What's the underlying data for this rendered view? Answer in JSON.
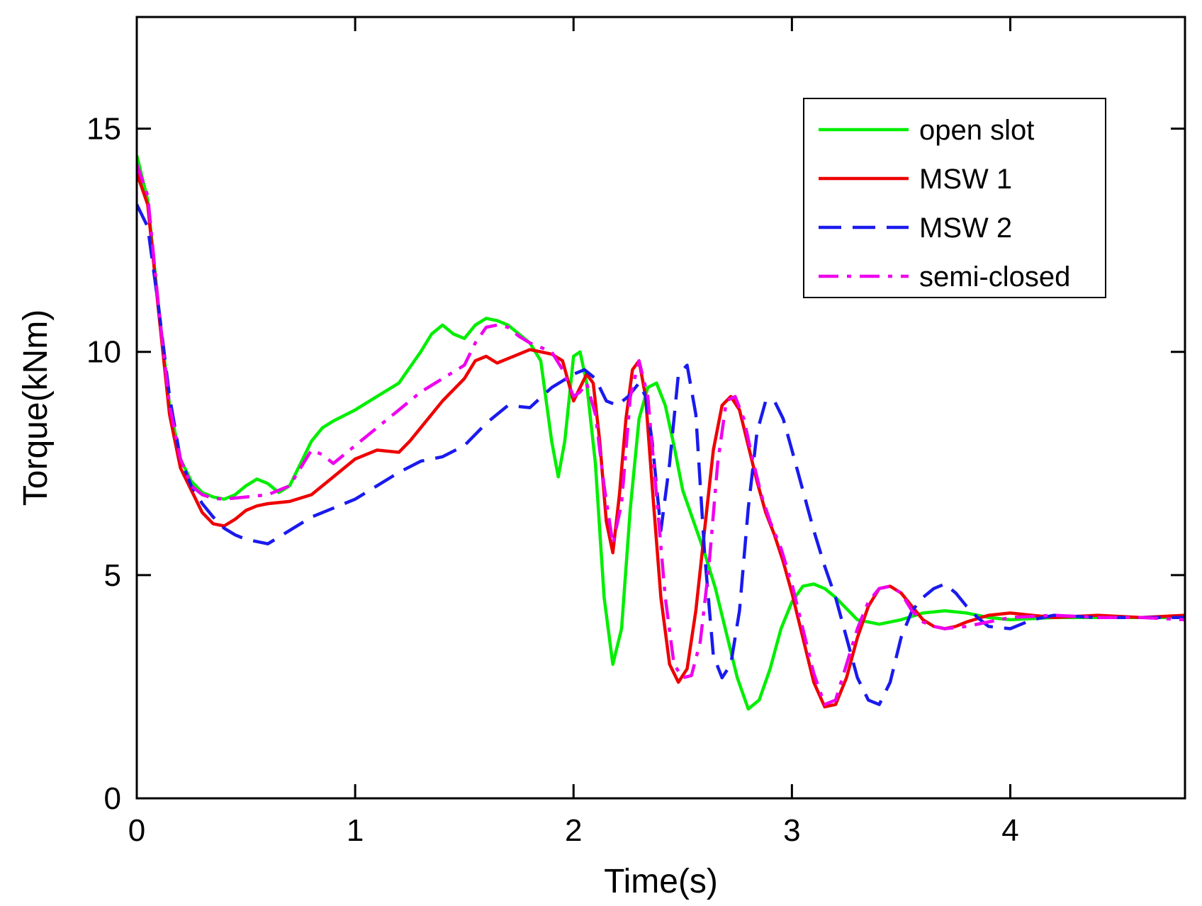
{
  "chart_data": {
    "type": "line",
    "title": "",
    "xlabel": "Time(s)",
    "ylabel": "Torque(kNm)",
    "xlim": [
      0,
      4.8
    ],
    "ylim": [
      0,
      17.5
    ],
    "xticks": [
      0,
      1,
      2,
      3,
      4
    ],
    "yticks": [
      0,
      5,
      10,
      15
    ],
    "xtick_labels": [
      "0",
      "1",
      "2",
      "3",
      "4"
    ],
    "ytick_labels": [
      "0",
      "5",
      "10",
      "15"
    ],
    "grid": false,
    "legend_position": "top-right",
    "series": [
      {
        "name": "open slot",
        "color": "#00ee00",
        "style": "solid",
        "x": [
          0,
          0.05,
          0.1,
          0.15,
          0.2,
          0.25,
          0.3,
          0.35,
          0.4,
          0.45,
          0.5,
          0.55,
          0.6,
          0.65,
          0.7,
          0.75,
          0.8,
          0.85,
          0.9,
          1.0,
          1.1,
          1.2,
          1.3,
          1.35,
          1.4,
          1.45,
          1.5,
          1.55,
          1.6,
          1.65,
          1.7,
          1.75,
          1.8,
          1.85,
          1.9,
          1.93,
          1.96,
          2.0,
          2.03,
          2.06,
          2.1,
          2.14,
          2.18,
          2.22,
          2.26,
          2.3,
          2.34,
          2.38,
          2.42,
          2.46,
          2.5,
          2.55,
          2.6,
          2.65,
          2.7,
          2.75,
          2.8,
          2.85,
          2.9,
          2.95,
          3.0,
          3.05,
          3.1,
          3.15,
          3.2,
          3.3,
          3.4,
          3.5,
          3.6,
          3.7,
          3.8,
          3.9,
          4.0,
          4.2,
          4.4,
          4.6,
          4.8
        ],
        "y": [
          14.4,
          13.4,
          11.0,
          8.8,
          7.6,
          7.1,
          6.85,
          6.75,
          6.7,
          6.8,
          7.0,
          7.15,
          7.05,
          6.85,
          7.0,
          7.5,
          8.0,
          8.3,
          8.45,
          8.7,
          9.0,
          9.3,
          10.0,
          10.4,
          10.6,
          10.4,
          10.3,
          10.6,
          10.75,
          10.7,
          10.6,
          10.4,
          10.2,
          9.8,
          8.0,
          7.2,
          8.0,
          9.9,
          10.0,
          9.3,
          7.5,
          4.5,
          3.0,
          3.8,
          6.5,
          8.5,
          9.2,
          9.3,
          8.8,
          7.9,
          6.9,
          6.2,
          5.5,
          4.7,
          3.7,
          2.7,
          2.0,
          2.2,
          2.9,
          3.8,
          4.4,
          4.75,
          4.8,
          4.7,
          4.5,
          4.0,
          3.9,
          4.0,
          4.15,
          4.2,
          4.15,
          4.05,
          4.0,
          4.05,
          4.05,
          4.05,
          4.05
        ]
      },
      {
        "name": "MSW 1",
        "color": "#ee0000",
        "style": "solid",
        "x": [
          0,
          0.05,
          0.1,
          0.15,
          0.2,
          0.25,
          0.3,
          0.35,
          0.4,
          0.45,
          0.5,
          0.55,
          0.6,
          0.7,
          0.8,
          0.9,
          1.0,
          1.1,
          1.2,
          1.25,
          1.3,
          1.4,
          1.5,
          1.55,
          1.6,
          1.65,
          1.7,
          1.75,
          1.8,
          1.85,
          1.9,
          1.95,
          2.0,
          2.03,
          2.06,
          2.09,
          2.12,
          2.15,
          2.18,
          2.21,
          2.24,
          2.27,
          2.3,
          2.33,
          2.36,
          2.4,
          2.44,
          2.48,
          2.52,
          2.56,
          2.6,
          2.64,
          2.68,
          2.72,
          2.76,
          2.8,
          2.84,
          2.88,
          2.92,
          2.96,
          3.0,
          3.05,
          3.1,
          3.15,
          3.2,
          3.25,
          3.3,
          3.35,
          3.4,
          3.45,
          3.5,
          3.55,
          3.6,
          3.65,
          3.7,
          3.75,
          3.8,
          3.9,
          4.0,
          4.1,
          4.2,
          4.4,
          4.6,
          4.8
        ],
        "y": [
          14.0,
          13.3,
          10.9,
          8.6,
          7.4,
          6.9,
          6.4,
          6.15,
          6.1,
          6.25,
          6.45,
          6.55,
          6.6,
          6.65,
          6.8,
          7.2,
          7.6,
          7.8,
          7.75,
          8.0,
          8.3,
          8.9,
          9.4,
          9.8,
          9.9,
          9.75,
          9.85,
          9.95,
          10.05,
          10.0,
          9.95,
          9.8,
          8.9,
          9.2,
          9.5,
          9.3,
          8.0,
          6.2,
          5.5,
          6.8,
          8.5,
          9.6,
          9.8,
          9.0,
          7.0,
          4.5,
          3.0,
          2.6,
          2.9,
          4.2,
          6.0,
          7.8,
          8.8,
          9.0,
          8.7,
          7.9,
          7.1,
          6.4,
          5.9,
          5.3,
          4.6,
          3.6,
          2.6,
          2.05,
          2.1,
          2.7,
          3.6,
          4.3,
          4.7,
          4.75,
          4.6,
          4.3,
          4.0,
          3.85,
          3.8,
          3.85,
          3.95,
          4.1,
          4.15,
          4.1,
          4.05,
          4.1,
          4.05,
          4.1
        ]
      },
      {
        "name": "MSW 2",
        "color": "#1a1aee",
        "style": "dashed",
        "x": [
          0,
          0.05,
          0.1,
          0.15,
          0.2,
          0.25,
          0.3,
          0.35,
          0.4,
          0.45,
          0.5,
          0.6,
          0.7,
          0.8,
          0.9,
          1.0,
          1.1,
          1.2,
          1.3,
          1.4,
          1.5,
          1.6,
          1.7,
          1.8,
          1.9,
          2.0,
          2.05,
          2.1,
          2.15,
          2.2,
          2.25,
          2.3,
          2.33,
          2.36,
          2.4,
          2.44,
          2.48,
          2.52,
          2.56,
          2.6,
          2.64,
          2.68,
          2.72,
          2.76,
          2.8,
          2.84,
          2.88,
          2.92,
          2.96,
          3.0,
          3.05,
          3.1,
          3.15,
          3.2,
          3.25,
          3.3,
          3.35,
          3.4,
          3.45,
          3.5,
          3.55,
          3.6,
          3.65,
          3.7,
          3.75,
          3.8,
          3.85,
          3.9,
          4.0,
          4.1,
          4.2,
          4.4,
          4.6,
          4.8
        ],
        "y": [
          13.3,
          12.8,
          11.0,
          9.0,
          7.6,
          7.0,
          6.6,
          6.3,
          6.05,
          5.9,
          5.8,
          5.7,
          6.0,
          6.3,
          6.5,
          6.7,
          7.0,
          7.3,
          7.55,
          7.65,
          7.9,
          8.4,
          8.8,
          8.75,
          9.2,
          9.5,
          9.6,
          9.4,
          8.9,
          8.8,
          9.0,
          9.3,
          9.0,
          8.0,
          6.0,
          7.5,
          9.5,
          9.7,
          8.6,
          5.5,
          3.2,
          2.7,
          3.0,
          4.2,
          6.5,
          8.2,
          8.9,
          8.9,
          8.5,
          7.8,
          6.9,
          6.0,
          5.2,
          4.5,
          3.6,
          2.7,
          2.2,
          2.1,
          2.6,
          3.6,
          4.2,
          4.5,
          4.7,
          4.8,
          4.6,
          4.3,
          4.05,
          3.85,
          3.8,
          4.0,
          4.1,
          4.05,
          4.05,
          4.05
        ]
      },
      {
        "name": "semi-closed",
        "color": "#ee00ee",
        "style": "dashdot",
        "x": [
          0,
          0.05,
          0.1,
          0.15,
          0.2,
          0.25,
          0.3,
          0.35,
          0.4,
          0.5,
          0.6,
          0.7,
          0.8,
          0.85,
          0.9,
          1.0,
          1.1,
          1.2,
          1.3,
          1.4,
          1.5,
          1.55,
          1.6,
          1.65,
          1.7,
          1.75,
          1.8,
          1.85,
          1.9,
          1.95,
          2.0,
          2.03,
          2.06,
          2.1,
          2.14,
          2.18,
          2.22,
          2.26,
          2.3,
          2.34,
          2.38,
          2.42,
          2.46,
          2.5,
          2.54,
          2.58,
          2.62,
          2.66,
          2.7,
          2.74,
          2.78,
          2.82,
          2.86,
          2.9,
          2.95,
          3.0,
          3.05,
          3.1,
          3.15,
          3.2,
          3.25,
          3.3,
          3.35,
          3.4,
          3.45,
          3.5,
          3.55,
          3.6,
          3.65,
          3.7,
          3.8,
          3.9,
          4.0,
          4.2,
          4.4,
          4.6,
          4.8
        ],
        "y": [
          14.2,
          13.5,
          11.0,
          8.8,
          7.6,
          7.0,
          6.8,
          6.72,
          6.7,
          6.75,
          6.8,
          7.0,
          7.8,
          7.7,
          7.5,
          7.9,
          8.3,
          8.7,
          9.1,
          9.4,
          9.7,
          10.2,
          10.55,
          10.6,
          10.55,
          10.35,
          10.2,
          10.1,
          10.0,
          9.6,
          9.0,
          9.1,
          9.3,
          8.6,
          7.0,
          5.7,
          6.6,
          9.0,
          9.8,
          9.0,
          6.8,
          4.5,
          3.0,
          2.7,
          2.75,
          3.5,
          5.2,
          7.5,
          8.9,
          9.0,
          8.5,
          7.6,
          6.8,
          6.2,
          5.6,
          4.8,
          3.8,
          2.8,
          2.1,
          2.2,
          3.0,
          3.8,
          4.4,
          4.7,
          4.75,
          4.6,
          4.2,
          3.95,
          3.85,
          3.8,
          3.85,
          3.95,
          4.05,
          4.1,
          4.05,
          4.05,
          4.0
        ]
      }
    ]
  }
}
